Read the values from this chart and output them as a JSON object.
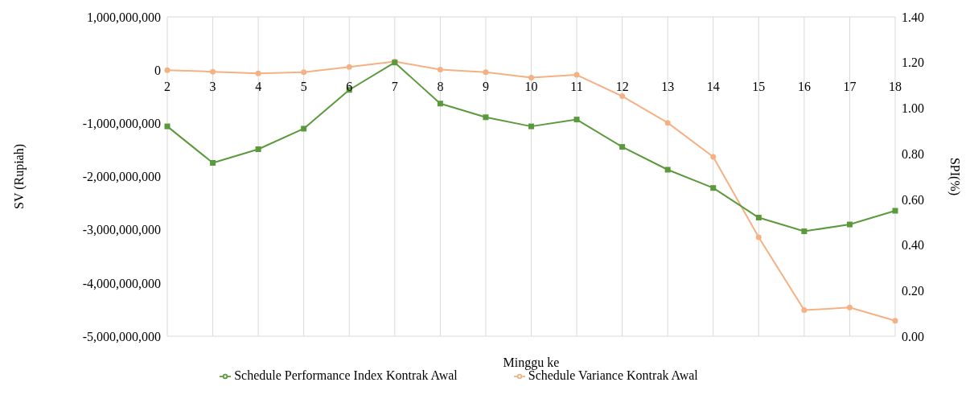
{
  "chart_data": {
    "type": "line",
    "xlabel": "Minggu ke",
    "ylabel": "SV (Rupiah)",
    "y2label": "SPI(%)",
    "categories": [
      "2",
      "3",
      "4",
      "5",
      "6",
      "7",
      "8",
      "9",
      "10",
      "11",
      "12",
      "13",
      "14",
      "15",
      "16",
      "17",
      "18"
    ],
    "series": [
      {
        "name": "Schedule Variance Kontrak Awal",
        "color": "#f4b183",
        "marker": "circle",
        "values": [
          0,
          -30000000,
          -60000000,
          -40000000,
          60000000,
          160000000,
          10000000,
          -40000000,
          -140000000,
          -90000000,
          -490000000,
          -990000000,
          -1630000000,
          -3140000000,
          -4510000000,
          -4460000000,
          -4710000000
        ]
      },
      {
        "name": "Schedule Performance Index Kontrak Awal",
        "color": "#5b9a3c",
        "marker": "square",
        "axis": "y2",
        "values": [
          0.92,
          0.76,
          0.82,
          0.91,
          1.08,
          1.2,
          1.02,
          0.96,
          0.92,
          0.95,
          0.83,
          0.73,
          0.65,
          0.52,
          0.46,
          0.49,
          0.55
        ]
      }
    ],
    "ylim": [
      -5000000000,
      1000000000
    ],
    "yticks": [
      {
        "value": -5000000000,
        "label": "-5,000,000,000"
      },
      {
        "value": -4000000000,
        "label": "-4,000,000,000"
      },
      {
        "value": -3000000000,
        "label": "-3,000,000,000"
      },
      {
        "value": -2000000000,
        "label": "-2,000,000,000"
      },
      {
        "value": -1000000000,
        "label": "-1,000,000,000"
      },
      0,
      {
        "value": 1000000000,
        "label": "1,000,000,000"
      }
    ],
    "y2lim": [
      0,
      1.4
    ],
    "y2ticks": [
      {
        "value": 0,
        "label": "0.00"
      },
      {
        "value": 0.2,
        "label": "0.20"
      },
      {
        "value": 0.4,
        "label": "0.40"
      },
      {
        "value": 0.6,
        "label": "0.60"
      },
      {
        "value": 0.8,
        "label": "0.80"
      },
      {
        "value": 1,
        "label": "1.00"
      },
      {
        "value": 1.2,
        "label": "1.20"
      },
      {
        "value": 1.4,
        "label": "1.40"
      }
    ],
    "grid": true,
    "legend": "bottom",
    "line_style": "solid"
  }
}
